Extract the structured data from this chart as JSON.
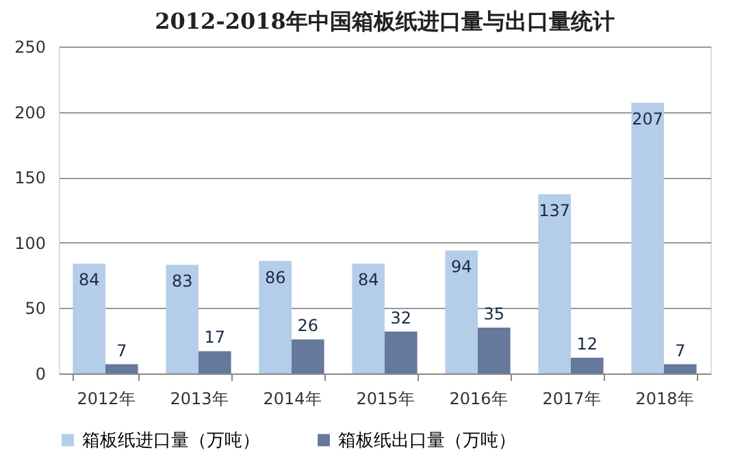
{
  "chart_data": {
    "type": "bar",
    "title": "2012-2018年中国箱板纸进口量与出口量统计",
    "categories": [
      "2012年",
      "2013年",
      "2014年",
      "2015年",
      "2016年",
      "2017年",
      "2018年"
    ],
    "series": [
      {
        "name": "箱板纸进口量（万吨）",
        "color": "#b4cde9",
        "values": [
          84,
          83,
          86,
          84,
          94,
          137,
          207
        ]
      },
      {
        "name": "箱板纸出口量（万吨）",
        "color": "#66789b",
        "values": [
          7,
          17,
          26,
          32,
          35,
          12,
          7
        ]
      }
    ],
    "ylim": [
      0,
      250
    ],
    "yticks": [
      0,
      50,
      100,
      150,
      200,
      250
    ],
    "grid": "y",
    "legend": "bottom",
    "data_labels": true
  }
}
